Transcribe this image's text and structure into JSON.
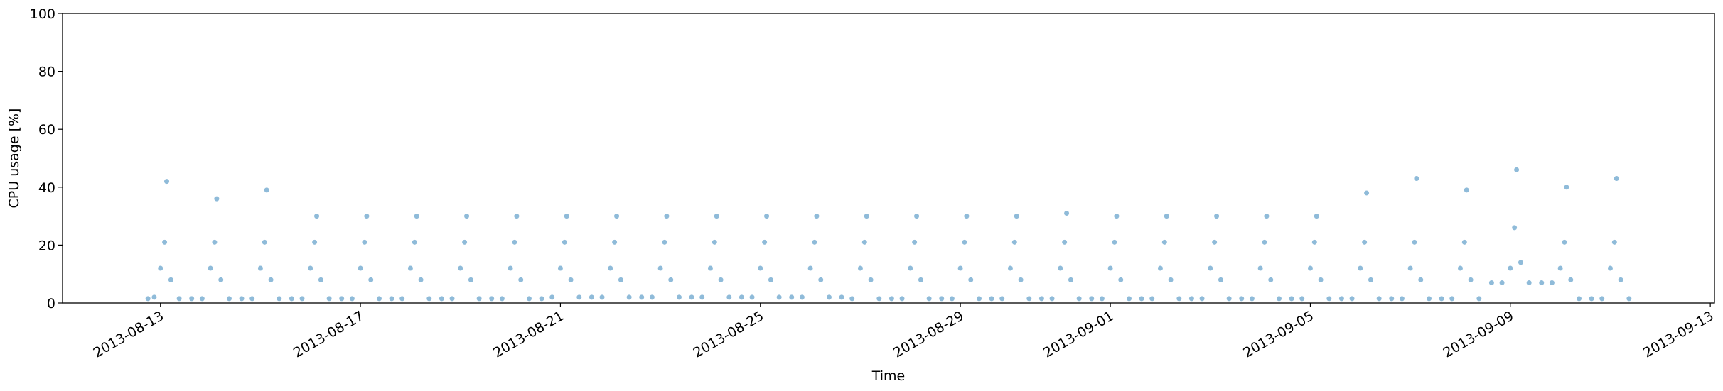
{
  "chart_data": {
    "type": "scatter",
    "xlabel": "Time",
    "ylabel": "CPU usage [%]",
    "color": "#1f77b4",
    "xlim": [
      "2013-08-11T01:00",
      "2013-09-13T02:00"
    ],
    "xticks": [
      "2013-08-13",
      "2013-08-17",
      "2013-08-21",
      "2013-08-25",
      "2013-08-29",
      "2013-09-01",
      "2013-09-05",
      "2013-09-09",
      "2013-09-13"
    ],
    "ylim": [
      0,
      100
    ],
    "yticks": [
      0,
      20,
      40,
      60,
      80,
      100
    ],
    "x": [
      "2013-08-12T18:00",
      "2013-08-12T21:00",
      "2013-08-13T00:00",
      "2013-08-13T02:00",
      "2013-08-13T03:00",
      "2013-08-13T05:00",
      "2013-08-13T09:00",
      "2013-08-13T15:00",
      "2013-08-13T20:00",
      "2013-08-14T00:00",
      "2013-08-14T02:00",
      "2013-08-14T03:00",
      "2013-08-14T05:00",
      "2013-08-14T09:00",
      "2013-08-14T15:00",
      "2013-08-14T20:00",
      "2013-08-15T00:00",
      "2013-08-15T02:00",
      "2013-08-15T03:00",
      "2013-08-15T05:00",
      "2013-08-15T09:00",
      "2013-08-15T15:00",
      "2013-08-15T20:00",
      "2013-08-16T00:00",
      "2013-08-16T02:00",
      "2013-08-16T03:00",
      "2013-08-16T05:00",
      "2013-08-16T09:00",
      "2013-08-16T15:00",
      "2013-08-16T20:00",
      "2013-08-17T00:00",
      "2013-08-17T02:00",
      "2013-08-17T03:00",
      "2013-08-17T05:00",
      "2013-08-17T09:00",
      "2013-08-17T15:00",
      "2013-08-17T20:00",
      "2013-08-18T00:00",
      "2013-08-18T02:00",
      "2013-08-18T03:00",
      "2013-08-18T05:00",
      "2013-08-18T09:00",
      "2013-08-18T15:00",
      "2013-08-18T20:00",
      "2013-08-19T00:00",
      "2013-08-19T02:00",
      "2013-08-19T03:00",
      "2013-08-19T05:00",
      "2013-08-19T09:00",
      "2013-08-19T15:00",
      "2013-08-19T20:00",
      "2013-08-20T00:00",
      "2013-08-20T02:00",
      "2013-08-20T03:00",
      "2013-08-20T05:00",
      "2013-08-20T09:00",
      "2013-08-20T15:00",
      "2013-08-20T20:00",
      "2013-08-21T00:00",
      "2013-08-21T02:00",
      "2013-08-21T03:00",
      "2013-08-21T05:00",
      "2013-08-21T09:00",
      "2013-08-21T15:00",
      "2013-08-21T20:00",
      "2013-08-22T00:00",
      "2013-08-22T02:00",
      "2013-08-22T03:00",
      "2013-08-22T05:00",
      "2013-08-22T09:00",
      "2013-08-22T15:00",
      "2013-08-22T20:00",
      "2013-08-23T00:00",
      "2013-08-23T02:00",
      "2013-08-23T03:00",
      "2013-08-23T05:00",
      "2013-08-23T09:00",
      "2013-08-23T15:00",
      "2013-08-23T20:00",
      "2013-08-24T00:00",
      "2013-08-24T02:00",
      "2013-08-24T03:00",
      "2013-08-24T05:00",
      "2013-08-24T09:00",
      "2013-08-24T15:00",
      "2013-08-24T20:00",
      "2013-08-25T00:00",
      "2013-08-25T02:00",
      "2013-08-25T03:00",
      "2013-08-25T05:00",
      "2013-08-25T09:00",
      "2013-08-25T15:00",
      "2013-08-25T20:00",
      "2013-08-26T00:00",
      "2013-08-26T02:00",
      "2013-08-26T03:00",
      "2013-08-26T05:00",
      "2013-08-26T09:00",
      "2013-08-26T15:00",
      "2013-08-26T20:00",
      "2013-08-27T00:00",
      "2013-08-27T02:00",
      "2013-08-27T03:00",
      "2013-08-27T05:00",
      "2013-08-27T09:00",
      "2013-08-27T15:00",
      "2013-08-27T20:00",
      "2013-08-28T00:00",
      "2013-08-28T02:00",
      "2013-08-28T03:00",
      "2013-08-28T05:00",
      "2013-08-28T09:00",
      "2013-08-28T15:00",
      "2013-08-28T20:00",
      "2013-08-29T00:00",
      "2013-08-29T02:00",
      "2013-08-29T03:00",
      "2013-08-29T05:00",
      "2013-08-29T09:00",
      "2013-08-29T15:00",
      "2013-08-29T20:00",
      "2013-08-30T00:00",
      "2013-08-30T02:00",
      "2013-08-30T03:00",
      "2013-08-30T05:00",
      "2013-08-30T09:00",
      "2013-08-30T15:00",
      "2013-08-30T20:00",
      "2013-08-31T00:00",
      "2013-08-31T02:00",
      "2013-08-31T03:00",
      "2013-08-31T05:00",
      "2013-08-31T09:00",
      "2013-08-31T15:00",
      "2013-08-31T20:00",
      "2013-09-01T00:00",
      "2013-09-01T02:00",
      "2013-09-01T03:00",
      "2013-09-01T05:00",
      "2013-09-01T09:00",
      "2013-09-01T15:00",
      "2013-09-01T20:00",
      "2013-09-02T00:00",
      "2013-09-02T02:00",
      "2013-09-02T03:00",
      "2013-09-02T05:00",
      "2013-09-02T09:00",
      "2013-09-02T15:00",
      "2013-09-02T20:00",
      "2013-09-03T00:00",
      "2013-09-03T02:00",
      "2013-09-03T03:00",
      "2013-09-03T05:00",
      "2013-09-03T09:00",
      "2013-09-03T15:00",
      "2013-09-03T20:00",
      "2013-09-04T00:00",
      "2013-09-04T02:00",
      "2013-09-04T03:00",
      "2013-09-04T05:00",
      "2013-09-04T09:00",
      "2013-09-04T15:00",
      "2013-09-04T20:00",
      "2013-09-05T00:00",
      "2013-09-05T02:00",
      "2013-09-05T03:00",
      "2013-09-05T05:00",
      "2013-09-05T09:00",
      "2013-09-05T15:00",
      "2013-09-05T20:00",
      "2013-09-06T00:00",
      "2013-09-06T02:00",
      "2013-09-06T03:00",
      "2013-09-06T05:00",
      "2013-09-06T09:00",
      "2013-09-06T15:00",
      "2013-09-06T20:00",
      "2013-09-07T00:00",
      "2013-09-07T02:00",
      "2013-09-07T03:00",
      "2013-09-07T05:00",
      "2013-09-07T09:00",
      "2013-09-07T15:00",
      "2013-09-07T20:00",
      "2013-09-08T00:00",
      "2013-09-08T02:00",
      "2013-09-08T03:00",
      "2013-09-08T05:00",
      "2013-09-08T09:00",
      "2013-09-08T15:00",
      "2013-09-08T20:00",
      "2013-09-09T00:00",
      "2013-09-09T02:00",
      "2013-09-09T03:00",
      "2013-09-09T05:00",
      "2013-09-09T09:00",
      "2013-09-09T15:00",
      "2013-09-09T20:00",
      "2013-09-10T00:00",
      "2013-09-10T02:00",
      "2013-09-10T03:00",
      "2013-09-10T05:00",
      "2013-09-10T09:00",
      "2013-09-10T15:00",
      "2013-09-10T20:00",
      "2013-09-11T00:00",
      "2013-09-11T02:00",
      "2013-09-11T03:00",
      "2013-09-11T05:00",
      "2013-09-11T09:00"
    ],
    "values": [
      1.5,
      2,
      12,
      21,
      42,
      8,
      1.5,
      1.5,
      1.5,
      12,
      21,
      36,
      8,
      1.5,
      1.5,
      1.5,
      12,
      21,
      39,
      8,
      1.5,
      1.5,
      1.5,
      12,
      21,
      30,
      8,
      1.5,
      1.5,
      1.5,
      12,
      21,
      30,
      8,
      1.5,
      1.5,
      1.5,
      12,
      21,
      30,
      8,
      1.5,
      1.5,
      1.5,
      12,
      21,
      30,
      8,
      1.5,
      1.5,
      1.5,
      12,
      21,
      30,
      8,
      1.5,
      1.5,
      2,
      12,
      21,
      30,
      8,
      2,
      2,
      2,
      12,
      21,
      30,
      8,
      2,
      2,
      2,
      12,
      21,
      30,
      8,
      2,
      2,
      2,
      12,
      21,
      30,
      8,
      2,
      2,
      2,
      12,
      21,
      30,
      8,
      2,
      2,
      2,
      12,
      21,
      30,
      8,
      2,
      2,
      1.5,
      12,
      21,
      30,
      8,
      1.5,
      1.5,
      1.5,
      12,
      21,
      30,
      8,
      1.5,
      1.5,
      1.5,
      12,
      21,
      30,
      8,
      1.5,
      1.5,
      1.5,
      12,
      21,
      30,
      8,
      1.5,
      1.5,
      1.5,
      12,
      21,
      31,
      8,
      1.5,
      1.5,
      1.5,
      12,
      21,
      30,
      8,
      1.5,
      1.5,
      1.5,
      12,
      21,
      30,
      8,
      1.5,
      1.5,
      1.5,
      12,
      21,
      30,
      8,
      1.5,
      1.5,
      1.5,
      12,
      21,
      30,
      8,
      1.5,
      1.5,
      1.5,
      12,
      21,
      30,
      8,
      1.5,
      1.5,
      1.5,
      12,
      21,
      38,
      8,
      1.5,
      1.5,
      1.5,
      12,
      21,
      43,
      8,
      1.5,
      1.5,
      1.5,
      12,
      21,
      39,
      8,
      1.5,
      7,
      7,
      12,
      26,
      46,
      14,
      7,
      7,
      7,
      12,
      21,
      40,
      8,
      1.5,
      1.5,
      1.5,
      12,
      21,
      43,
      8,
      1.5
    ]
  }
}
